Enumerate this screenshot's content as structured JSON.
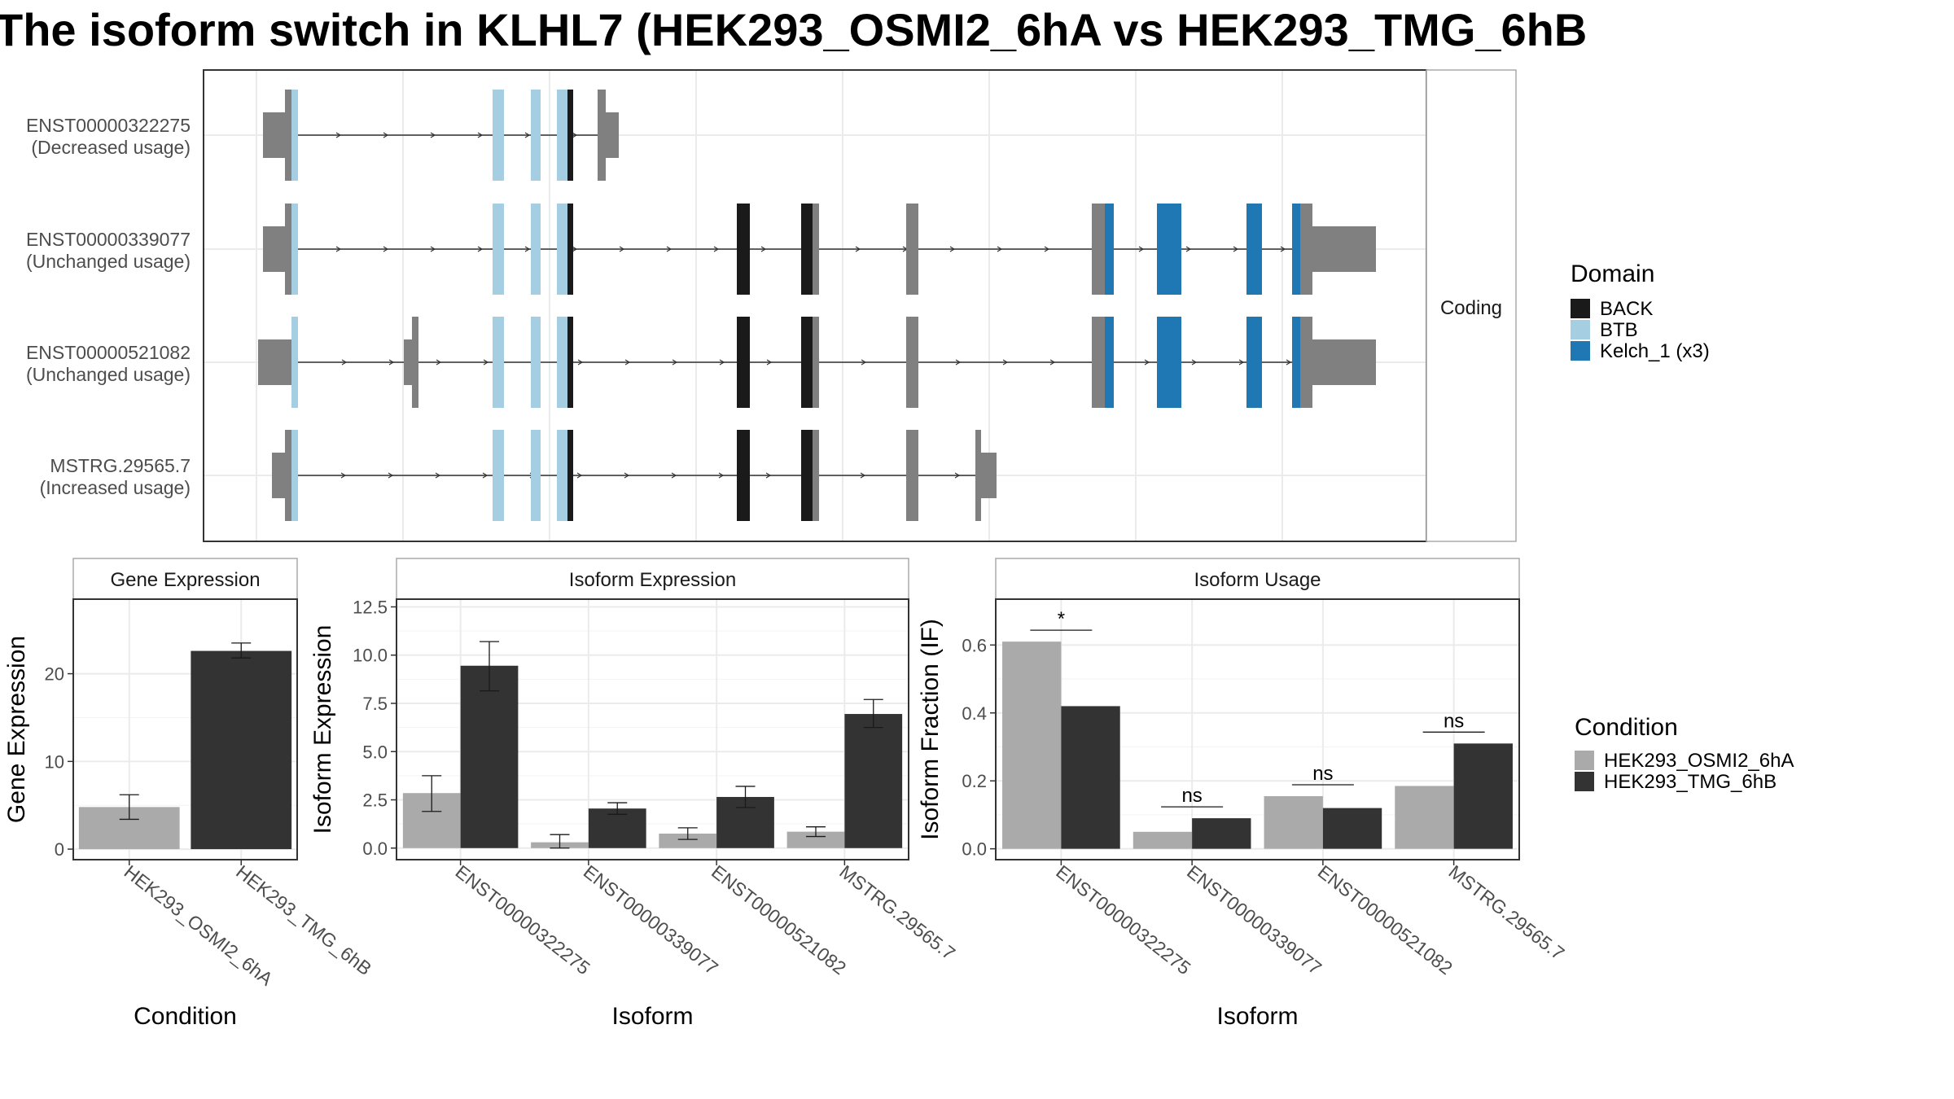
{
  "title": "The isoform switch in KLHL7 (HEK293_OSMI2_6hA vs HEK293_TMG_6hB",
  "colors": {
    "non_domain": "#808080",
    "BACK": "#1a1a1a",
    "BTB": "#a6cee3",
    "Kelch_1 (x3)": "#1f78b4",
    "cond1": "#aaaaaa",
    "cond2": "#333333"
  },
  "chart_data": [
    {
      "type": "gene-structure",
      "facet_label": "Coding",
      "isoforms": [
        {
          "id": "ENST00000322275",
          "usage": "(Decreased usage)"
        },
        {
          "id": "ENST00000339077",
          "usage": "(Unchanged usage)"
        },
        {
          "id": "ENST00000521082",
          "usage": "(Unchanged usage)"
        },
        {
          "id": "MSTRG.29565.7",
          "usage": "(Increased usage)"
        }
      ],
      "legend": {
        "title": "Domain",
        "entries": [
          {
            "name": "BACK",
            "color": "#1a1a1a"
          },
          {
            "name": "BTB",
            "color": "#a6cee3"
          },
          {
            "name": "Kelch_1 (x3)",
            "color": "#1f78b4"
          }
        ]
      }
    },
    {
      "type": "bar",
      "title": "Gene Expression",
      "xlabel": "Condition",
      "ylabel": "Gene Expression",
      "categories": [
        "HEK293_OSMI2_6hA",
        "HEK293_TMG_6hB"
      ],
      "values": [
        4.8,
        22.6
      ],
      "errors": [
        [
          3.4,
          6.2
        ],
        [
          21.8,
          23.5
        ]
      ],
      "yticks": [
        0,
        10,
        20
      ],
      "ylim": [
        -1.2,
        28.5
      ]
    },
    {
      "type": "bar",
      "title": "Isoform Expression",
      "xlabel": "Isoform",
      "ylabel": "Isoform Expression",
      "categories": [
        "ENST00000322275",
        "ENST00000339077",
        "ENST00000521082",
        "MSTRG.29565.7"
      ],
      "series": [
        {
          "name": "HEK293_OSMI2_6hA",
          "values": [
            2.85,
            0.3,
            0.75,
            0.85
          ],
          "errors": [
            [
              1.9,
              3.75
            ],
            [
              0.0,
              0.7
            ],
            [
              0.45,
              1.05
            ],
            [
              0.6,
              1.1
            ]
          ]
        },
        {
          "name": "HEK293_TMG_6hB",
          "values": [
            9.45,
            2.05,
            2.65,
            6.95
          ],
          "errors": [
            [
              8.15,
              10.7
            ],
            [
              1.75,
              2.35
            ],
            [
              2.1,
              3.2
            ],
            [
              6.25,
              7.7
            ]
          ]
        }
      ],
      "yticks": [
        0.0,
        2.5,
        5.0,
        7.5,
        10.0,
        12.5
      ],
      "ytick_labels": [
        "0.0",
        "2.5",
        "5.0",
        "7.5",
        "10.0",
        "12.5"
      ],
      "ylim": [
        -0.6,
        12.9
      ]
    },
    {
      "type": "bar",
      "title": "Isoform Usage",
      "xlabel": "Isoform",
      "ylabel": "Isoform Fraction (IF)",
      "categories": [
        "ENST00000322275",
        "ENST00000339077",
        "ENST00000521082",
        "MSTRG.29565.7"
      ],
      "series": [
        {
          "name": "HEK293_OSMI2_6hA",
          "values": [
            0.61,
            0.05,
            0.155,
            0.185
          ]
        },
        {
          "name": "HEK293_TMG_6hB",
          "values": [
            0.42,
            0.09,
            0.12,
            0.31
          ]
        }
      ],
      "significance": [
        "*",
        "ns",
        "ns",
        "ns"
      ],
      "yticks": [
        0.0,
        0.2,
        0.4,
        0.6
      ],
      "ytick_labels": [
        "0.0",
        "0.2",
        "0.4",
        "0.6"
      ],
      "ylim": [
        -0.032,
        0.735
      ]
    }
  ],
  "condition_legend": {
    "title": "Condition",
    "entries": [
      {
        "name": "HEK293_OSMI2_6hA",
        "color": "#aaaaaa"
      },
      {
        "name": "HEK293_TMG_6hB",
        "color": "#333333"
      }
    ]
  }
}
